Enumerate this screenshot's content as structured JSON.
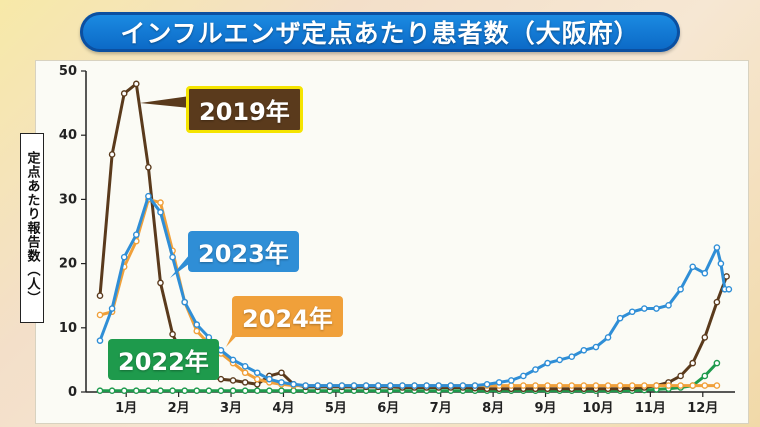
{
  "title": "インフルエンザ定点あたり患者数（大阪府）",
  "colors": {
    "2019": "#5a3a1c",
    "2023": "#2f8ed6",
    "2024": "#f0a03a",
    "2022": "#1e9a4c"
  },
  "chart_data": {
    "type": "line",
    "title": "インフルエンザ定点あたり患者数（大阪府）",
    "ylabel": "定点あたり報告数（人）",
    "xlabel": "",
    "xticks": [
      "1月",
      "2月",
      "3月",
      "4月",
      "5月",
      "6月",
      "7月",
      "8月",
      "9月",
      "10月",
      "11月",
      "12月"
    ],
    "yticks": [
      0,
      10,
      20,
      30,
      40,
      50
    ],
    "ylim": [
      0,
      50
    ],
    "x_unit": "week",
    "xlim": [
      1,
      53
    ],
    "grid": false,
    "series": [
      {
        "name": "2019年",
        "color": "#5a3a1c",
        "x": [
          1,
          2,
          3,
          4,
          5,
          6,
          7,
          8,
          9,
          10,
          11,
          12,
          13,
          14,
          15,
          16,
          17,
          18,
          19,
          20,
          21,
          22,
          23,
          24,
          25,
          26,
          27,
          28,
          29,
          30,
          31,
          32,
          33,
          34,
          35,
          36,
          37,
          38,
          39,
          40,
          41,
          42,
          43,
          44,
          45,
          46,
          47,
          48,
          49,
          50,
          51,
          52
        ],
        "values": [
          15,
          37,
          46.5,
          48,
          35,
          17,
          9,
          5,
          3.5,
          2.5,
          2,
          1.8,
          1.5,
          1.2,
          2.5,
          3,
          1.2,
          0.8,
          0.8,
          0.8,
          0.8,
          0.8,
          0.8,
          0.8,
          0.8,
          0.7,
          0.7,
          0.7,
          0.7,
          0.7,
          0.7,
          0.6,
          0.5,
          0.5,
          0.5,
          0.5,
          0.5,
          0.5,
          0.5,
          0.5,
          0.5,
          0.5,
          0.5,
          0.5,
          0.6,
          0.7,
          1,
          1.5,
          2.5,
          4.5,
          8.5,
          14
        ]
      },
      {
        "name": "2023年",
        "color": "#2f8ed6",
        "x": [
          1,
          2,
          3,
          4,
          5,
          6,
          7,
          8,
          9,
          10,
          11,
          12,
          13,
          14,
          15,
          16,
          17,
          18,
          19,
          20,
          21,
          22,
          23,
          24,
          25,
          26,
          27,
          28,
          29,
          30,
          31,
          32,
          33,
          34,
          35,
          36,
          37,
          38,
          39,
          40,
          41,
          42,
          43,
          44,
          45,
          46,
          47,
          48,
          49,
          50,
          51,
          52
        ],
        "values": [
          8,
          13,
          21,
          24.5,
          30.5,
          28,
          21,
          14,
          10.5,
          8.5,
          6.5,
          5,
          4,
          3,
          2,
          1.5,
          1.2,
          1,
          1,
          1,
          1,
          1,
          1,
          1,
          1,
          1,
          1,
          1,
          1,
          1,
          1,
          1,
          1.2,
          1.5,
          1.8,
          2.5,
          3.5,
          4.5,
          5,
          5.5,
          6.5,
          7,
          8.5,
          11.5,
          12.5,
          13,
          13,
          13.5,
          16,
          19.5,
          18.5,
          22.5
        ]
      },
      {
        "name": "2024年",
        "color": "#f0a03a",
        "x": [
          1,
          2,
          3,
          4,
          5,
          6,
          7,
          8,
          9,
          10,
          11,
          12,
          13,
          14,
          15,
          16,
          17,
          18,
          19,
          20,
          21,
          22,
          23,
          24,
          25,
          26,
          27,
          28,
          29,
          30,
          31,
          32,
          33,
          34,
          35,
          36,
          37,
          38,
          39,
          40,
          41,
          42,
          43,
          44,
          45,
          46,
          47,
          48,
          49,
          50,
          51,
          52
        ],
        "values": [
          12,
          12.5,
          19.5,
          23.5,
          30,
          29.5,
          22,
          14,
          9.5,
          7.5,
          6,
          4.5,
          3,
          2,
          1.5,
          1.2,
          1,
          1,
          1,
          1,
          1,
          1,
          1,
          1,
          1,
          1,
          1,
          1,
          1,
          1,
          1,
          1,
          1,
          1,
          1,
          1,
          1,
          1,
          1,
          1,
          1,
          1,
          1,
          1,
          1,
          1,
          1,
          1,
          1,
          1,
          1,
          1
        ]
      },
      {
        "name": "2022年",
        "color": "#1e9a4c",
        "x": [
          1,
          2,
          3,
          4,
          5,
          6,
          7,
          8,
          9,
          10,
          11,
          12,
          13,
          14,
          15,
          16,
          17,
          18,
          19,
          20,
          21,
          22,
          23,
          24,
          25,
          26,
          27,
          28,
          29,
          30,
          31,
          32,
          33,
          34,
          35,
          36,
          37,
          38,
          39,
          40,
          41,
          42,
          43,
          44,
          45,
          46,
          47,
          48,
          49,
          50,
          51,
          52
        ],
        "values": [
          0.2,
          0.2,
          0.2,
          0.2,
          0.2,
          0.2,
          0.2,
          0.2,
          0.2,
          0.2,
          0.2,
          0.2,
          0.2,
          0.2,
          0.2,
          0.2,
          0.2,
          0.2,
          0.2,
          0.2,
          0.2,
          0.2,
          0.2,
          0.2,
          0.2,
          0.2,
          0.2,
          0.2,
          0.2,
          0.2,
          0.2,
          0.2,
          0.2,
          0.2,
          0.2,
          0.2,
          0.2,
          0.2,
          0.2,
          0.2,
          0.2,
          0.2,
          0.2,
          0.2,
          0.2,
          0.3,
          0.4,
          0.5,
          0.7,
          1,
          2.5,
          4.5
        ]
      }
    ]
  },
  "extra_2023_tail": [
    20,
    16,
    16
  ],
  "extra_2019_tail": [
    18
  ]
}
